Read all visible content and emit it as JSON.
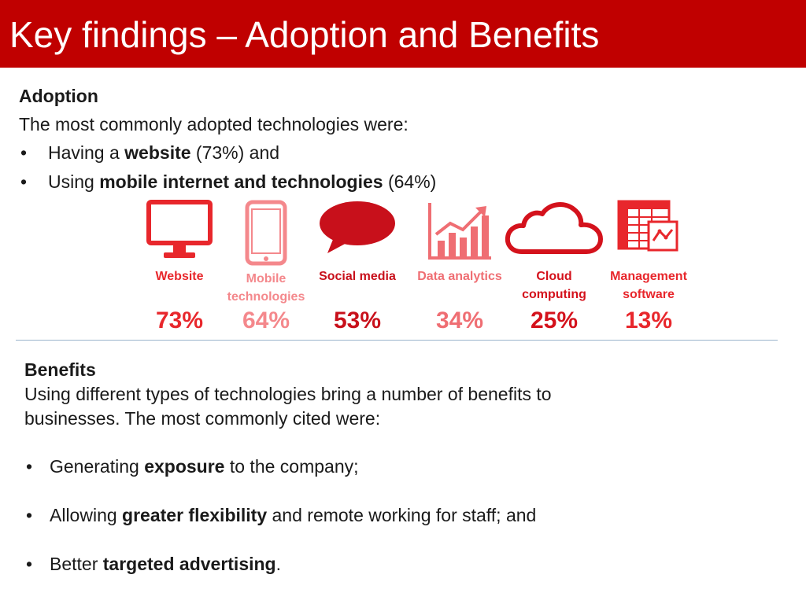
{
  "title": "Key findings – Adoption and Benefits",
  "adoption": {
    "heading": "Adoption",
    "intro": "The most commonly adopted technologies were:",
    "bullets": [
      {
        "before": "Having a ",
        "bold": "website",
        "after": " (73%) and"
      },
      {
        "before": "Using ",
        "bold": "mobile internet and technologies",
        "after": " (64%)"
      }
    ]
  },
  "technologies": [
    {
      "icon": "monitor-icon",
      "label": "Website",
      "percent": "73%",
      "color": "#e8272c"
    },
    {
      "icon": "smartphone-icon",
      "label": "Mobile technologies",
      "percent": "64%",
      "color": "#f4888c"
    },
    {
      "icon": "speech-bubble-icon",
      "label": "Social media",
      "percent": "53%",
      "color": "#c8101b"
    },
    {
      "icon": "analytics-chart-icon",
      "label": "Data analytics",
      "percent": "34%",
      "color": "#ef6e73"
    },
    {
      "icon": "cloud-icon",
      "label": "Cloud computing",
      "percent": "25%",
      "color": "#d4121c"
    },
    {
      "icon": "spreadsheet-icon",
      "label": "Management software",
      "percent": "13%",
      "color": "#e8272c"
    }
  ],
  "benefits": {
    "heading": "Benefits",
    "intro": "Using different types of technologies bring a number of benefits to businesses. The most commonly cited were:",
    "bullets": [
      {
        "before": "Generating ",
        "bold": "exposure",
        "after": " to the company;"
      },
      {
        "before": "Allowing ",
        "bold": "greater flexibility",
        "after": " and remote working for staff; and"
      },
      {
        "before": "Better ",
        "bold": "targeted advertising",
        "after": "."
      }
    ]
  },
  "bullet_char": "•",
  "colors": {
    "title_bar": "#c00000",
    "title_text": "#ffffff",
    "divider": "#9bb4cc"
  }
}
